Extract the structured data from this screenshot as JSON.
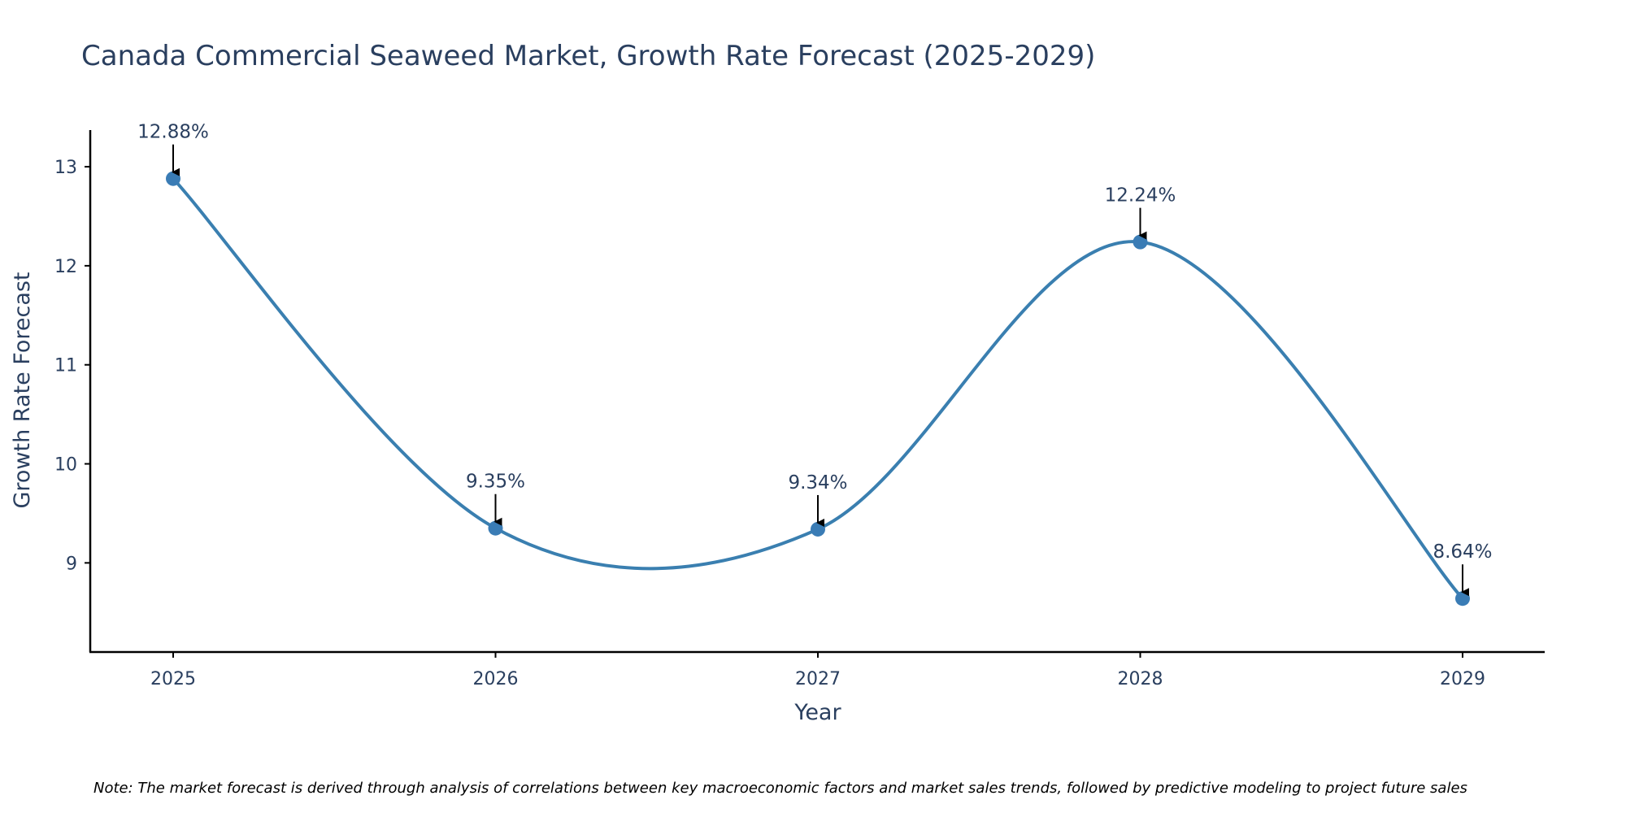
{
  "colors": {
    "line": "#3a7fb0",
    "marker": "#3a7cb5",
    "axis": "#000000",
    "text": "#2a3f5f",
    "arrow": "#000000"
  },
  "chart_data": {
    "type": "line",
    "title": "Canada Commercial Seaweed Market, Growth Rate Forecast (2025-2029)",
    "xlabel": "Year",
    "ylabel": "Growth Rate Forecast",
    "categories": [
      "2025",
      "2026",
      "2027",
      "2028",
      "2029"
    ],
    "series": [
      {
        "name": "Growth Rate Forecast",
        "values": [
          12.88,
          9.35,
          9.34,
          12.24,
          8.64
        ],
        "labels": [
          "12.88%",
          "9.35%",
          "9.34%",
          "12.24%",
          "8.64%"
        ]
      }
    ],
    "ylim": [
      8.1,
      13.37
    ],
    "yticks": [
      9,
      10,
      11,
      12,
      13
    ],
    "line_shape": "spline",
    "markers": true,
    "grid": false,
    "note": "Note: The market forecast is derived through analysis of correlations between key macroeconomic factors and market sales trends, followed by predictive modeling to project future sales"
  }
}
